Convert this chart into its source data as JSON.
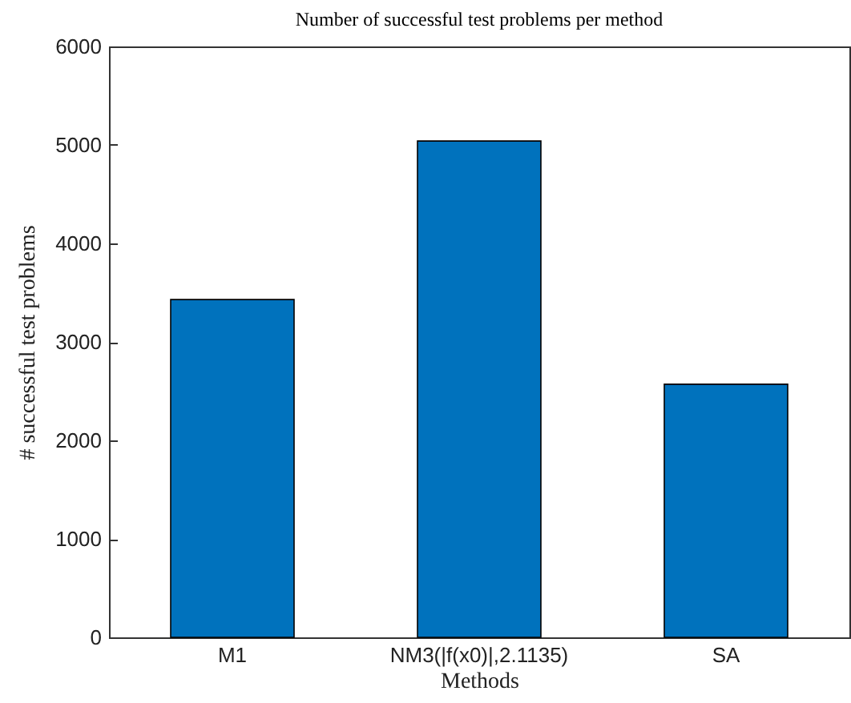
{
  "chart_data": {
    "type": "bar",
    "title": "Number of successful test problems per method",
    "xlabel": "Methods",
    "ylabel": "# successful test problems",
    "categories": [
      "M1",
      "NM3(|f(x0)|,2.1135)",
      "SA"
    ],
    "values": [
      3430,
      5040,
      2570
    ],
    "color": "#0072bd",
    "ylim": [
      0,
      6000
    ],
    "yticks": [
      0,
      1000,
      2000,
      3000,
      4000,
      5000,
      6000
    ],
    "grid": false
  }
}
